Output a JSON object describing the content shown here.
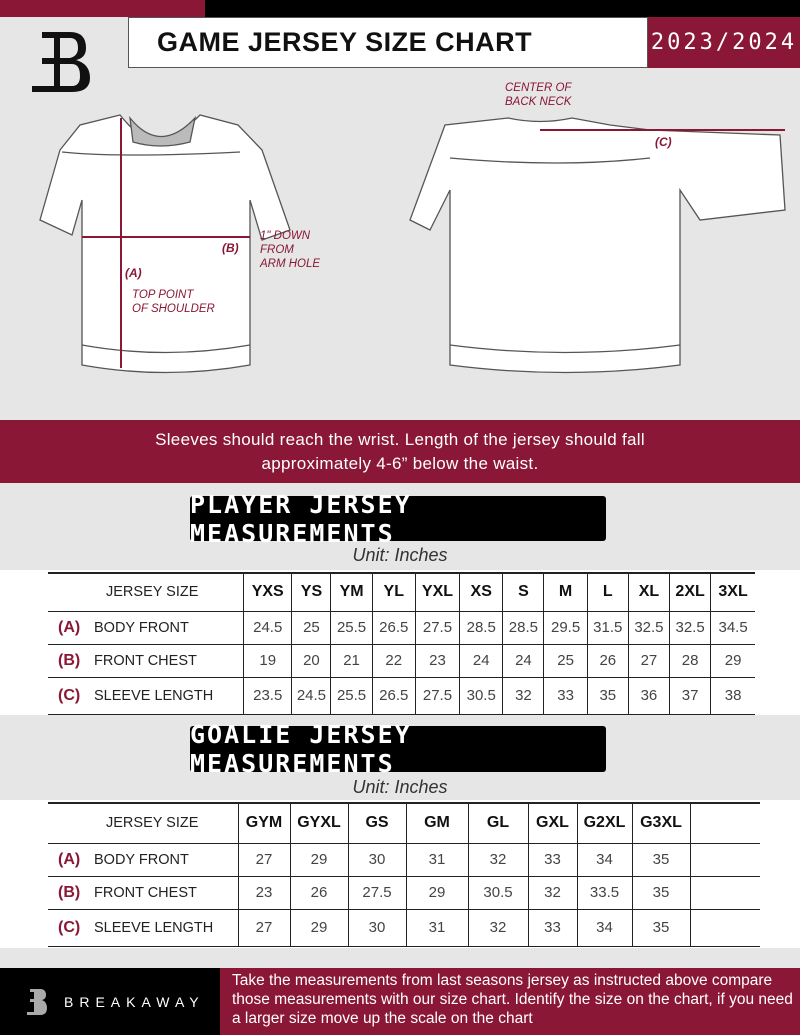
{
  "header": {
    "title": "GAME JERSEY SIZE CHART",
    "season": "2023/2024"
  },
  "diagram": {
    "center_back_neck": [
      "CENTER OF",
      "BACK NECK"
    ],
    "label_a": "(A)",
    "label_b": "(B)",
    "label_c": "(C)",
    "top_point": [
      "TOP POINT",
      "OF SHOULDER"
    ],
    "down_from": [
      "1\" DOWN",
      "FROM",
      "ARM HOLE"
    ]
  },
  "instructions": [
    "Sleeves should reach the wrist. Length of the jersey should fall",
    "approximately 4-6” below the waist."
  ],
  "player": {
    "title": "PLAYER JERSEY MEASUREMENTS",
    "unit": "Unit: Inches",
    "size_label": "JERSEY SIZE",
    "sizes": [
      "YXS",
      "YS",
      "YM",
      "YL",
      "YXL",
      "XS",
      "S",
      "M",
      "L",
      "XL",
      "2XL",
      "3XL"
    ],
    "rows": [
      {
        "letter": "(A)",
        "label": "BODY FRONT",
        "values": [
          "24.5",
          "25",
          "25.5",
          "26.5",
          "27.5",
          "28.5",
          "28.5",
          "29.5",
          "31.5",
          "32.5",
          "32.5",
          "34.5"
        ]
      },
      {
        "letter": "(B)",
        "label": "FRONT CHEST",
        "values": [
          "19",
          "20",
          "21",
          "22",
          "23",
          "24",
          "24",
          "25",
          "26",
          "27",
          "28",
          "29"
        ]
      },
      {
        "letter": "(C)",
        "label": "SLEEVE LENGTH",
        "values": [
          "23.5",
          "24.5",
          "25.5",
          "26.5",
          "27.5",
          "30.5",
          "32",
          "33",
          "35",
          "36",
          "37",
          "38"
        ]
      }
    ]
  },
  "goalie": {
    "title": "GOALIE JERSEY MEASUREMENTS",
    "unit": "Unit: Inches",
    "size_label": "JERSEY SIZE",
    "sizes": [
      "GYM",
      "GYXL",
      "GS",
      "GM",
      "GL",
      "GXL",
      "G2XL",
      "G3XL",
      ""
    ],
    "rows": [
      {
        "letter": "(A)",
        "label": "BODY FRONT",
        "values": [
          "27",
          "29",
          "30",
          "31",
          "32",
          "33",
          "34",
          "35",
          ""
        ]
      },
      {
        "letter": "(B)",
        "label": "FRONT CHEST",
        "values": [
          "23",
          "26",
          "27.5",
          "29",
          "30.5",
          "32",
          "33.5",
          "35",
          ""
        ]
      },
      {
        "letter": "(C)",
        "label": "SLEEVE LENGTH",
        "values": [
          "27",
          "29",
          "30",
          "31",
          "32",
          "33",
          "34",
          "35",
          ""
        ]
      }
    ]
  },
  "footer": {
    "brand": "BREAKAWAY",
    "note": "Take the measurements from last seasons jersey as instructed above compare those measurements  with our size chart. Identify the size on the chart, if you need a larger size move up the scale on the chart"
  },
  "colors": {
    "maroon": "#8a1735",
    "black": "#000000",
    "background": "#e6e6e7"
  }
}
